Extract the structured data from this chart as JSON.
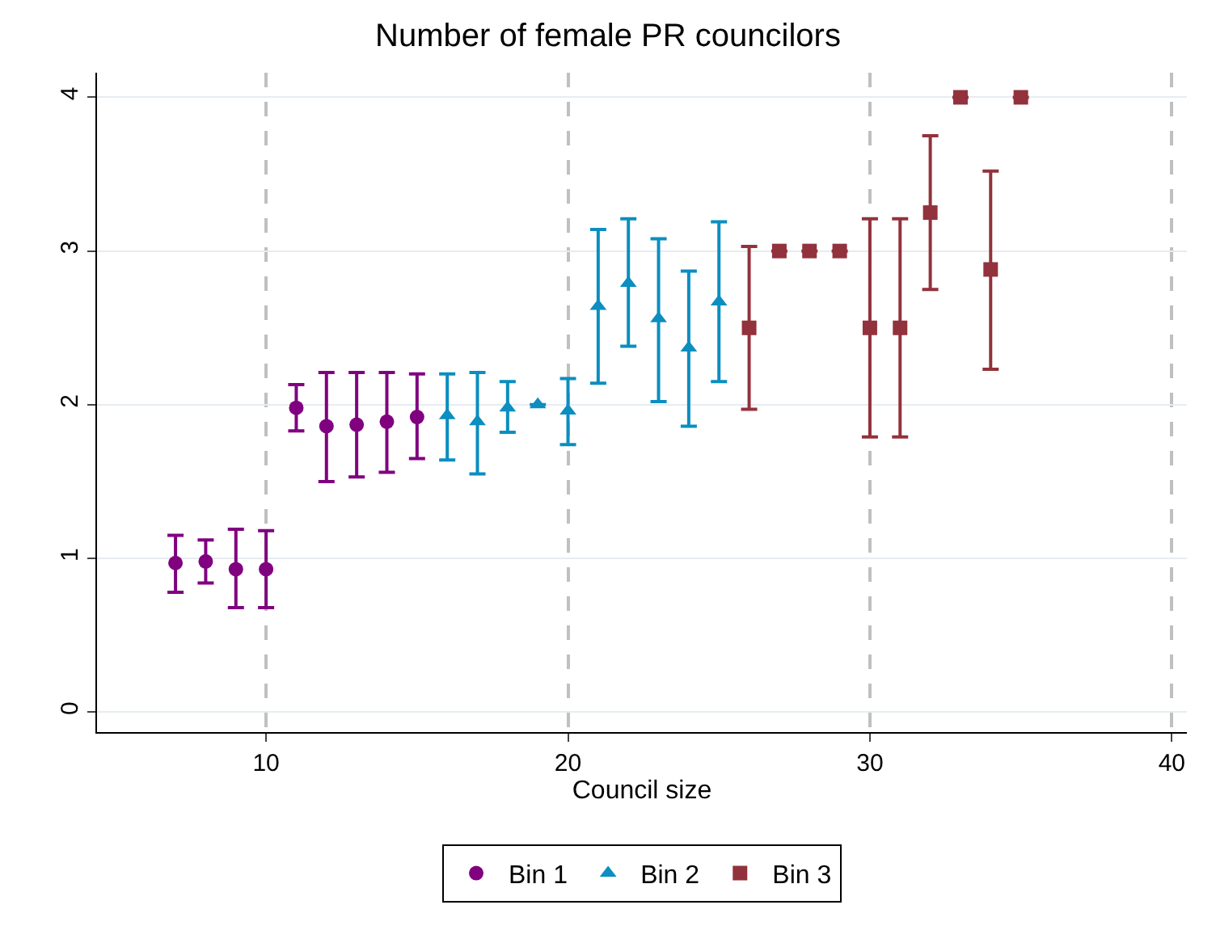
{
  "chart_data": {
    "type": "scatter",
    "title": "Number of female PR councilors",
    "xlabel": "Council size",
    "xlim": [
      4.4,
      40.5
    ],
    "xticks": [
      10,
      20,
      30,
      40
    ],
    "ylim": [
      -0.13,
      4.16
    ],
    "yticks": [
      0,
      1,
      2,
      3,
      4
    ],
    "grid": true,
    "legend": "bottom",
    "series": [
      {
        "name": "Bin 1",
        "color": "#800080",
        "marker": "circle",
        "x": [
          7,
          8,
          9,
          10,
          11,
          12,
          13,
          14,
          15
        ],
        "values": [
          0.97,
          0.98,
          0.93,
          0.93,
          1.98,
          1.86,
          1.87,
          1.89,
          1.92
        ],
        "errors": [
          [
            0.78,
            1.15
          ],
          [
            0.84,
            1.12
          ],
          [
            0.68,
            1.19
          ],
          [
            0.68,
            1.18
          ],
          [
            1.83,
            2.13
          ],
          [
            1.5,
            2.21
          ],
          [
            1.53,
            2.21
          ],
          [
            1.56,
            2.21
          ],
          [
            1.65,
            2.2
          ]
        ]
      },
      {
        "name": "Bin 2",
        "color": "#0b8ec0",
        "marker": "triangle",
        "x": [
          16,
          17,
          18,
          19,
          20,
          21,
          22,
          23,
          24,
          25
        ],
        "values": [
          1.93,
          1.89,
          1.98,
          2.0,
          1.96,
          2.64,
          2.79,
          2.56,
          2.37,
          2.67
        ],
        "errors": [
          [
            1.64,
            2.2
          ],
          [
            1.55,
            2.21
          ],
          [
            1.82,
            2.15
          ],
          null,
          [
            1.74,
            2.17
          ],
          [
            2.14,
            3.14
          ],
          [
            2.38,
            3.21
          ],
          [
            2.02,
            3.08
          ],
          [
            1.86,
            2.87
          ],
          [
            2.15,
            3.19
          ]
        ]
      },
      {
        "name": "Bin 3",
        "color": "#92323c",
        "marker": "square",
        "x": [
          26,
          27,
          28,
          29,
          30,
          31,
          32,
          33,
          34,
          35
        ],
        "values": [
          2.5,
          3,
          3,
          3,
          2.5,
          2.5,
          3.25,
          4,
          2.88,
          4
        ],
        "errors": [
          [
            1.97,
            3.03
          ],
          null,
          null,
          null,
          [
            1.79,
            3.21
          ],
          [
            1.79,
            3.21
          ],
          [
            2.75,
            3.75
          ],
          null,
          [
            2.23,
            3.52
          ],
          null
        ]
      }
    ]
  }
}
